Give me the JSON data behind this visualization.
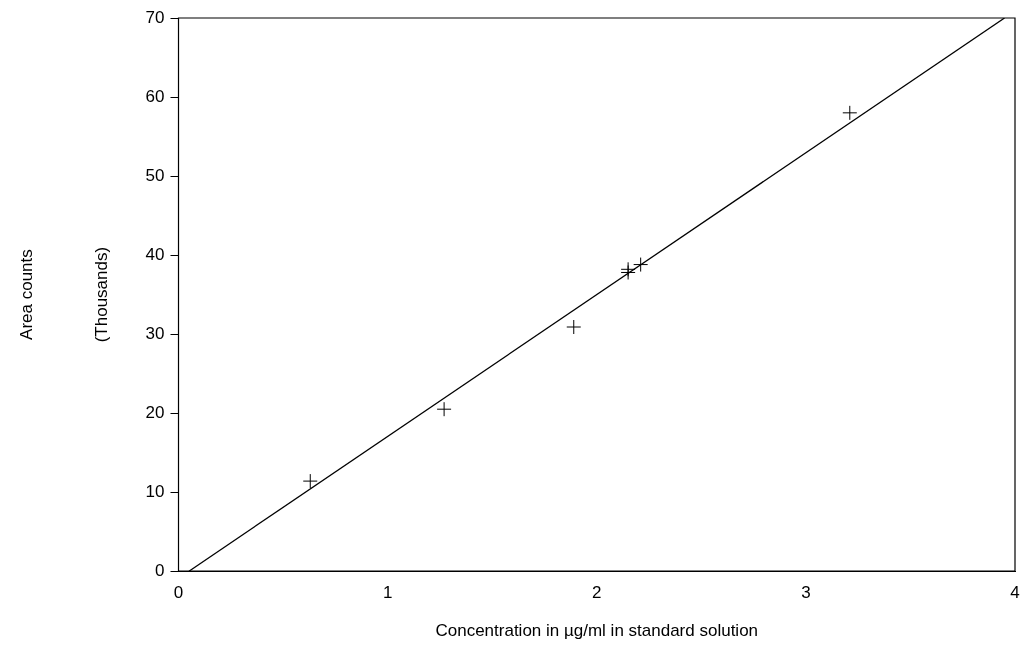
{
  "chart_data": {
    "type": "scatter",
    "xlabel": "Concentration in µg/ml in standard solution",
    "ylabel": "Area counts\n(Thousands)",
    "series": [
      {
        "type": "scatter",
        "color": "#000000",
        "marker": "cross",
        "x": [
          0.63,
          1.27,
          1.89,
          2.15,
          2.15,
          2.21,
          3.21
        ],
        "values": [
          11.4,
          20.5,
          30.9,
          37.8,
          38.2,
          38.8,
          58.0
        ]
      },
      {
        "type": "line",
        "color": "#000000",
        "x": [
          0.05,
          3.95
        ],
        "values": [
          0,
          70
        ]
      }
    ],
    "xlim": [
      0,
      4
    ],
    "xticks": [
      0,
      1,
      2,
      3,
      4
    ],
    "ylim": [
      0,
      70
    ],
    "yticks": [
      0,
      10,
      20,
      30,
      40,
      50,
      60,
      70
    ]
  }
}
